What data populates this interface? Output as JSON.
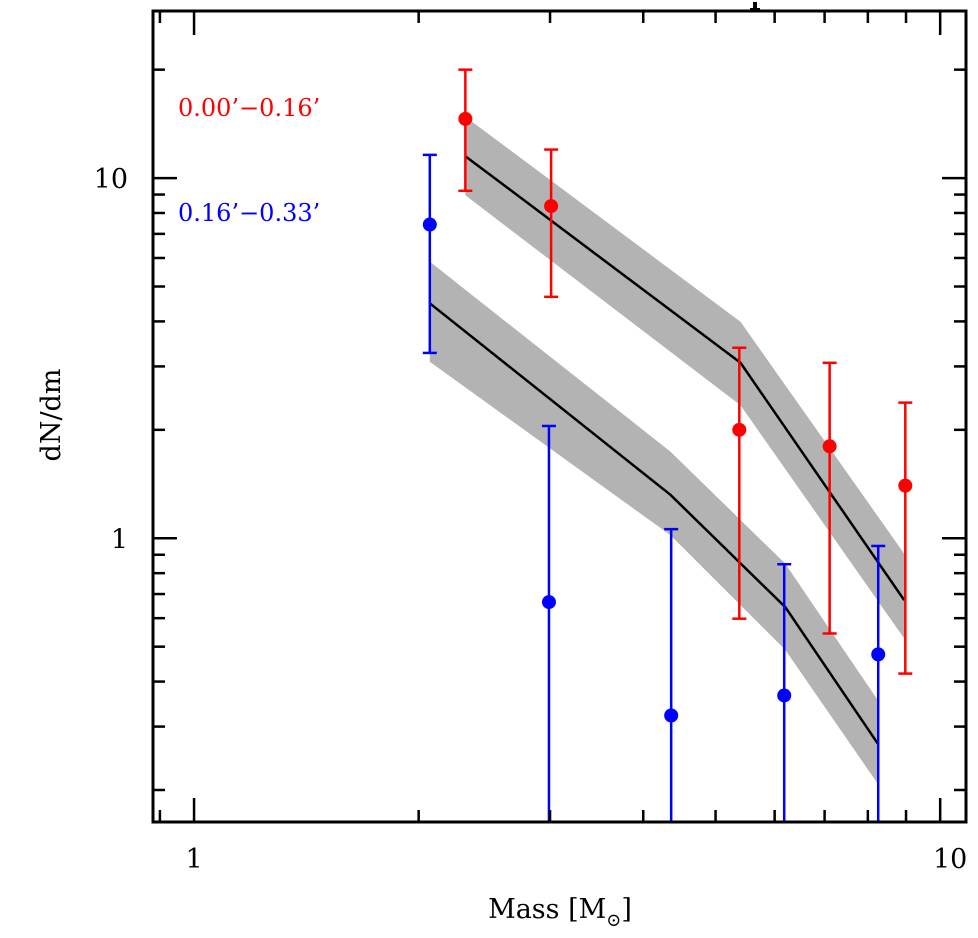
{
  "chart_data": {
    "type": "scatter",
    "title": "",
    "xlabel": "Mass [M⊙]",
    "xlabel_main": "Mass ",
    "xlabel_unit_open": "[M",
    "xlabel_unit_sub": "⊙",
    "xlabel_unit_close": "]",
    "ylabel": "dN/dm",
    "xscale": "log",
    "yscale": "log",
    "xlim": [
      0.881,
      10.83
    ],
    "ylim": [
      0.163,
      29.1
    ],
    "grid": false,
    "legend_position": "top-left",
    "x_major_ticks": [
      1,
      10
    ],
    "x_tick_labels": [
      "1",
      "10"
    ],
    "y_major_ticks": [
      1,
      10
    ],
    "y_tick_labels": [
      "1",
      "10"
    ],
    "series": [
      {
        "name": "0.00’−0.16’",
        "color": "#ff0000",
        "points": [
          {
            "x": 2.31,
            "y": 14.6,
            "ylo": 9.22,
            "yhi": 20.0
          },
          {
            "x": 3.01,
            "y": 8.36,
            "ylo": 4.68,
            "yhi": 12.0
          },
          {
            "x": 5.38,
            "y": 2.0,
            "ylo": 0.598,
            "yhi": 3.38
          },
          {
            "x": 7.11,
            "y": 1.8,
            "ylo": 0.544,
            "yhi": 3.07
          },
          {
            "x": 8.98,
            "y": 1.4,
            "ylo": 0.421,
            "yhi": 2.38
          }
        ],
        "model": {
          "x": [
            2.31,
            5.4,
            8.95
          ],
          "y": [
            11.5,
            3.07,
            0.673
          ],
          "y_low": [
            8.96,
            2.34,
            0.527
          ],
          "y_high": [
            14.8,
            3.99,
            0.906
          ]
        }
      },
      {
        "name": "0.16’−0.33’",
        "color": "#0000ff",
        "points": [
          {
            "x": 2.07,
            "y": 7.43,
            "ylo": 3.27,
            "yhi": 11.6
          },
          {
            "x": 2.99,
            "y": 0.665,
            "ylo": 0.0,
            "yhi": 2.05
          },
          {
            "x": 4.36,
            "y": 0.322,
            "ylo": 0.0,
            "yhi": 1.06
          },
          {
            "x": 6.18,
            "y": 0.366,
            "ylo": 0.0,
            "yhi": 0.847
          },
          {
            "x": 8.26,
            "y": 0.476,
            "ylo": 0.0,
            "yhi": 0.952
          }
        ],
        "model": {
          "x": [
            2.07,
            4.35,
            6.2,
            8.25
          ],
          "y": [
            4.49,
            1.32,
            0.644,
            0.269
          ],
          "y_low": [
            3.09,
            1.02,
            0.49,
            0.208
          ],
          "y_high": [
            5.86,
            1.74,
            0.85,
            0.355
          ]
        }
      }
    ],
    "band_color": "#b3b3b3",
    "line_color": "#000000"
  }
}
